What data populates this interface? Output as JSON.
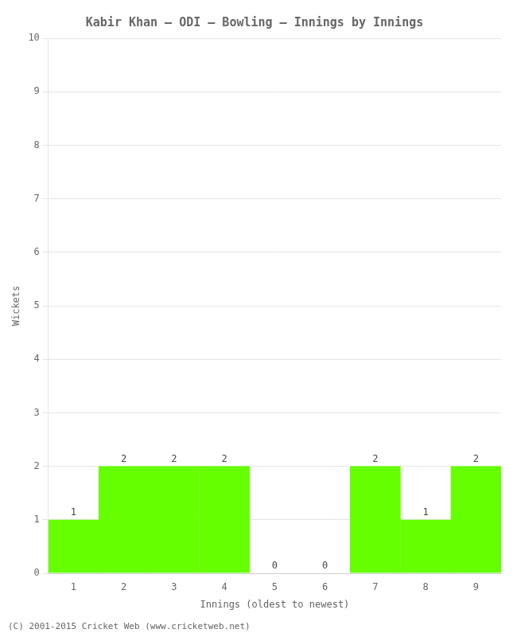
{
  "chart_data": {
    "type": "bar",
    "title": "Kabir Khan – ODI – Bowling – Innings by Innings",
    "x_label": "Innings (oldest to newest)",
    "y_label": "Wickets",
    "categories": [
      "1",
      "2",
      "3",
      "4",
      "5",
      "6",
      "7",
      "8",
      "9"
    ],
    "values": [
      1,
      2,
      2,
      2,
      0,
      0,
      2,
      1,
      2
    ],
    "color": "#66ff00",
    "ylim": [
      0,
      10
    ],
    "yticks": [
      0,
      1,
      2,
      3,
      4,
      5,
      6,
      7,
      8,
      9,
      10
    ],
    "grid": true,
    "data_labels": true,
    "footer": "(C) 2001-2015 Cricket Web (www.cricketweb.net)"
  }
}
